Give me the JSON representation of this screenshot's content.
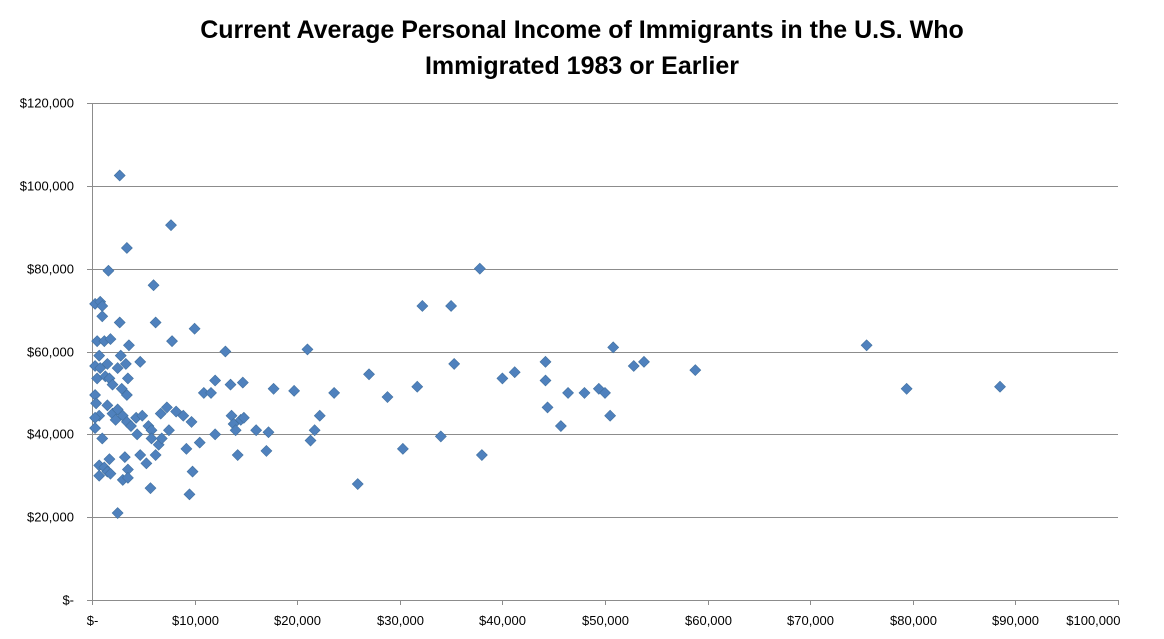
{
  "chart_data": {
    "type": "scatter",
    "title_line1": "Current Average Personal Income of Immigrants in the U.S. Who",
    "title_line2": "Immigrated 1983 or Earlier",
    "xlabel": "",
    "ylabel": "",
    "xlim": [
      0,
      100000
    ],
    "ylim": [
      0,
      120000
    ],
    "x_ticks": [
      0,
      10000,
      20000,
      30000,
      40000,
      50000,
      60000,
      70000,
      80000,
      90000,
      100000
    ],
    "x_tick_labels": [
      "$-",
      "$10,000",
      "$20,000",
      "$30,000",
      "$40,000",
      "$50,000",
      "$60,000",
      "$70,000",
      "$80,000",
      "$90,000",
      "$100,000"
    ],
    "y_ticks": [
      0,
      20000,
      40000,
      60000,
      80000,
      100000,
      120000
    ],
    "y_tick_labels": [
      "$-",
      "$20,000",
      "$40,000",
      "$60,000",
      "$80,000",
      "$100,000",
      "$120,000"
    ],
    "grid": "horizontal",
    "marker_color": "#4f81bd",
    "marker_shape": "diamond",
    "points": [
      [
        300,
        71500
      ],
      [
        800,
        72000
      ],
      [
        1000,
        71000
      ],
      [
        1000,
        68500
      ],
      [
        500,
        62500
      ],
      [
        1200,
        62500
      ],
      [
        1800,
        63000
      ],
      [
        700,
        59000
      ],
      [
        1500,
        57000
      ],
      [
        300,
        56500
      ],
      [
        800,
        56000
      ],
      [
        500,
        53500
      ],
      [
        1300,
        54000
      ],
      [
        1700,
        53500
      ],
      [
        2000,
        52000
      ],
      [
        300,
        49500
      ],
      [
        400,
        47500
      ],
      [
        1500,
        47000
      ],
      [
        700,
        44500
      ],
      [
        300,
        44000
      ],
      [
        2000,
        45000
      ],
      [
        2500,
        46000
      ],
      [
        2300,
        43500
      ],
      [
        300,
        41500
      ],
      [
        1000,
        39000
      ],
      [
        700,
        32500
      ],
      [
        1200,
        32000
      ],
      [
        1500,
        31000
      ],
      [
        1800,
        30500
      ],
      [
        700,
        30000
      ],
      [
        2500,
        21000
      ],
      [
        1700,
        34000
      ],
      [
        1600,
        79500
      ],
      [
        2700,
        67000
      ],
      [
        2800,
        59000
      ],
      [
        2500,
        56000
      ],
      [
        3300,
        57000
      ],
      [
        3600,
        61500
      ],
      [
        2900,
        51000
      ],
      [
        3400,
        49500
      ],
      [
        3500,
        53500
      ],
      [
        3000,
        44500
      ],
      [
        3400,
        43000
      ],
      [
        3800,
        42000
      ],
      [
        3200,
        34500
      ],
      [
        3500,
        31500
      ],
      [
        3000,
        29000
      ],
      [
        3500,
        29500
      ],
      [
        2700,
        102500
      ],
      [
        3400,
        85000
      ],
      [
        4700,
        57500
      ],
      [
        4300,
        44000
      ],
      [
        4900,
        44500
      ],
      [
        4700,
        35000
      ],
      [
        5300,
        33000
      ],
      [
        4400,
        40000
      ],
      [
        5500,
        42000
      ],
      [
        5800,
        41000
      ],
      [
        5800,
        39000
      ],
      [
        5700,
        27000
      ],
      [
        6200,
        35000
      ],
      [
        6500,
        37500
      ],
      [
        6800,
        39000
      ],
      [
        6000,
        76000
      ],
      [
        6200,
        67000
      ],
      [
        6700,
        45000
      ],
      [
        7300,
        46500
      ],
      [
        7800,
        62500
      ],
      [
        7500,
        41000
      ],
      [
        7700,
        90500
      ],
      [
        8200,
        45500
      ],
      [
        8900,
        44500
      ],
      [
        9700,
        43000
      ],
      [
        9200,
        36500
      ],
      [
        9800,
        31000
      ],
      [
        9500,
        25500
      ],
      [
        10000,
        65500
      ],
      [
        10500,
        38000
      ],
      [
        10900,
        50000
      ],
      [
        11600,
        50000
      ],
      [
        12000,
        53000
      ],
      [
        12000,
        40000
      ],
      [
        13000,
        60000
      ],
      [
        13500,
        52000
      ],
      [
        13600,
        44500
      ],
      [
        13800,
        42500
      ],
      [
        14000,
        41000
      ],
      [
        14200,
        35000
      ],
      [
        14500,
        43500
      ],
      [
        14700,
        52500
      ],
      [
        14800,
        44000
      ],
      [
        16000,
        41000
      ],
      [
        17200,
        40500
      ],
      [
        17000,
        36000
      ],
      [
        17700,
        51000
      ],
      [
        19700,
        50500
      ],
      [
        21000,
        60500
      ],
      [
        21300,
        38500
      ],
      [
        21700,
        41000
      ],
      [
        22200,
        44500
      ],
      [
        23600,
        50000
      ],
      [
        25900,
        28000
      ],
      [
        27000,
        54500
      ],
      [
        28800,
        49000
      ],
      [
        30300,
        36500
      ],
      [
        31700,
        51500
      ],
      [
        32200,
        71000
      ],
      [
        34000,
        39500
      ],
      [
        35000,
        71000
      ],
      [
        35300,
        57000
      ],
      [
        38000,
        35000
      ],
      [
        37800,
        80000
      ],
      [
        40000,
        53500
      ],
      [
        41200,
        55000
      ],
      [
        44200,
        57500
      ],
      [
        44200,
        53000
      ],
      [
        44400,
        46500
      ],
      [
        45700,
        42000
      ],
      [
        46400,
        50000
      ],
      [
        48000,
        50000
      ],
      [
        49400,
        51000
      ],
      [
        50000,
        50000
      ],
      [
        50500,
        44500
      ],
      [
        50800,
        61000
      ],
      [
        52800,
        56500
      ],
      [
        53800,
        57500
      ],
      [
        58800,
        55500
      ],
      [
        75500,
        61500
      ],
      [
        79400,
        51000
      ],
      [
        88500,
        51500
      ]
    ]
  }
}
